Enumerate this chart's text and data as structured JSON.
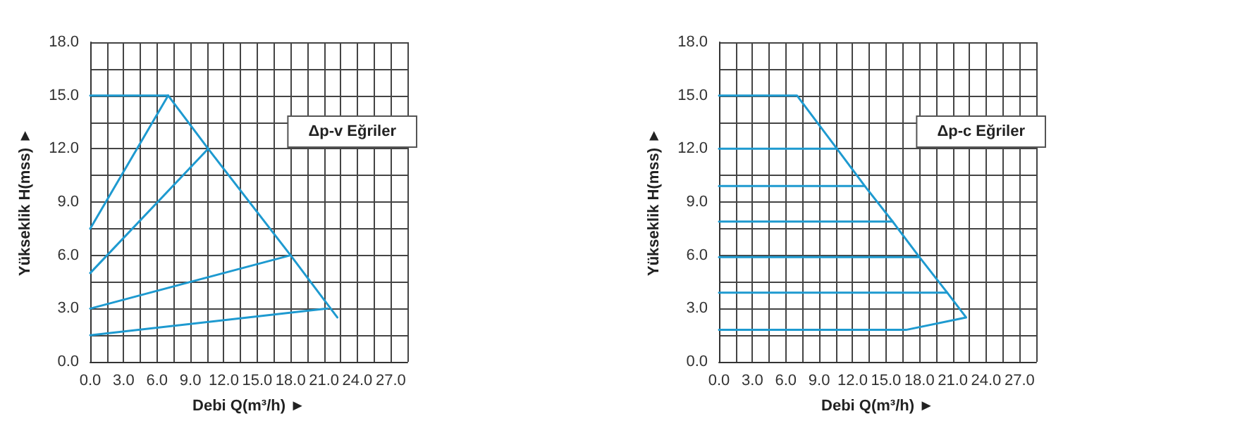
{
  "chart_data": [
    {
      "type": "line",
      "xlabel": "Debi Q(m³/h) ►",
      "ylabel": "Yükseklik H(mss) ►",
      "annotations": [
        "Δp-v Eğriler"
      ],
      "grid": true,
      "line_style": "solid",
      "marker": "none",
      "xlim": [
        0,
        28.5
      ],
      "ylim": [
        0,
        18
      ],
      "xticks": [
        {
          "value": 0,
          "label": "0.0"
        },
        {
          "value": 1.5,
          "label": null
        },
        {
          "value": 3,
          "label": "3.0"
        },
        {
          "value": 4.5,
          "label": null
        },
        {
          "value": 6,
          "label": "6.0"
        },
        {
          "value": 7.5,
          "label": null
        },
        {
          "value": 9,
          "label": "9.0"
        },
        {
          "value": 10.5,
          "label": null
        },
        {
          "value": 12,
          "label": "12.0"
        },
        {
          "value": 13.5,
          "label": null
        },
        {
          "value": 15,
          "label": "15.0"
        },
        {
          "value": 16.5,
          "label": null
        },
        {
          "value": 18,
          "label": "18.0"
        },
        {
          "value": 19.5,
          "label": null
        },
        {
          "value": 21,
          "label": "21.0"
        },
        {
          "value": 22.5,
          "label": null
        },
        {
          "value": 24,
          "label": "24.0"
        },
        {
          "value": 25.5,
          "label": null
        },
        {
          "value": 27,
          "label": "27.0"
        }
      ],
      "yticks": [
        {
          "value": 0,
          "label": "0.0"
        },
        {
          "value": 1.5,
          "label": null
        },
        {
          "value": 3,
          "label": "3.0"
        },
        {
          "value": 4.5,
          "label": null
        },
        {
          "value": 6,
          "label": "6.0"
        },
        {
          "value": 7.5,
          "label": null
        },
        {
          "value": 9,
          "label": "9.0"
        },
        {
          "value": 10.5,
          "label": null
        },
        {
          "value": 12,
          "label": "12.0"
        },
        {
          "value": 13.5,
          "label": null
        },
        {
          "value": 15,
          "label": "15.0"
        },
        {
          "value": 16.5,
          "label": null
        },
        {
          "value": 18,
          "label": "18.0"
        }
      ],
      "series": [
        {
          "color": "#1e9ad0",
          "x": [
            0,
            7,
            10.6,
            18,
            22.2
          ],
          "values": [
            15,
            15,
            12,
            6,
            2.5
          ]
        },
        {
          "color": "#1e9ad0",
          "x": [
            0,
            7
          ],
          "values": [
            7.5,
            15
          ]
        },
        {
          "color": "#1e9ad0",
          "x": [
            0,
            10.6
          ],
          "values": [
            5,
            12
          ]
        },
        {
          "color": "#1e9ad0",
          "x": [
            0,
            18
          ],
          "values": [
            3,
            6
          ]
        },
        {
          "color": "#1e9ad0",
          "x": [
            0,
            21.3
          ],
          "values": [
            1.5,
            3
          ]
        }
      ]
    },
    {
      "type": "line",
      "xlabel": "Debi Q(m³/h) ►",
      "ylabel": "Yükseklik H(mss) ►",
      "annotations": [
        "Δp-c Eğriler"
      ],
      "grid": true,
      "line_style": "solid",
      "marker": "none",
      "xlim": [
        0,
        28.5
      ],
      "ylim": [
        0,
        18
      ],
      "xticks": [
        {
          "value": 0,
          "label": "0.0"
        },
        {
          "value": 1.5,
          "label": null
        },
        {
          "value": 3,
          "label": "3.0"
        },
        {
          "value": 4.5,
          "label": null
        },
        {
          "value": 6,
          "label": "6.0"
        },
        {
          "value": 7.5,
          "label": null
        },
        {
          "value": 9,
          "label": "9.0"
        },
        {
          "value": 10.5,
          "label": null
        },
        {
          "value": 12,
          "label": "12.0"
        },
        {
          "value": 13.5,
          "label": null
        },
        {
          "value": 15,
          "label": "15.0"
        },
        {
          "value": 16.5,
          "label": null
        },
        {
          "value": 18,
          "label": "18.0"
        },
        {
          "value": 19.5,
          "label": null
        },
        {
          "value": 21,
          "label": "21.0"
        },
        {
          "value": 22.5,
          "label": null
        },
        {
          "value": 24,
          "label": "24.0"
        },
        {
          "value": 25.5,
          "label": null
        },
        {
          "value": 27,
          "label": "27.0"
        }
      ],
      "yticks": [
        {
          "value": 0,
          "label": "0.0"
        },
        {
          "value": 1.5,
          "label": null
        },
        {
          "value": 3,
          "label": "3.0"
        },
        {
          "value": 4.5,
          "label": null
        },
        {
          "value": 6,
          "label": "6.0"
        },
        {
          "value": 7.5,
          "label": null
        },
        {
          "value": 9,
          "label": "9.0"
        },
        {
          "value": 10.5,
          "label": null
        },
        {
          "value": 12,
          "label": "12.0"
        },
        {
          "value": 13.5,
          "label": null
        },
        {
          "value": 15,
          "label": "15.0"
        },
        {
          "value": 16.5,
          "label": null
        },
        {
          "value": 18,
          "label": "18.0"
        }
      ],
      "series": [
        {
          "color": "#1e9ad0",
          "x": [
            0,
            7,
            10.6,
            13.1,
            15.6,
            18,
            20.5,
            22.2,
            16.8,
            0
          ],
          "values": [
            15,
            15,
            12,
            9.9,
            7.9,
            5.9,
            3.9,
            2.5,
            1.8,
            1.8
          ]
        },
        {
          "color": "#1e9ad0",
          "x": [
            0,
            10.6
          ],
          "values": [
            12,
            12
          ]
        },
        {
          "color": "#1e9ad0",
          "x": [
            0,
            13.1
          ],
          "values": [
            9.9,
            9.9
          ]
        },
        {
          "color": "#1e9ad0",
          "x": [
            0,
            15.6
          ],
          "values": [
            7.9,
            7.9
          ]
        },
        {
          "color": "#1e9ad0",
          "x": [
            0,
            18
          ],
          "values": [
            5.9,
            5.9
          ]
        },
        {
          "color": "#1e9ad0",
          "x": [
            0,
            20.5
          ],
          "values": [
            3.9,
            3.9
          ]
        }
      ]
    }
  ]
}
